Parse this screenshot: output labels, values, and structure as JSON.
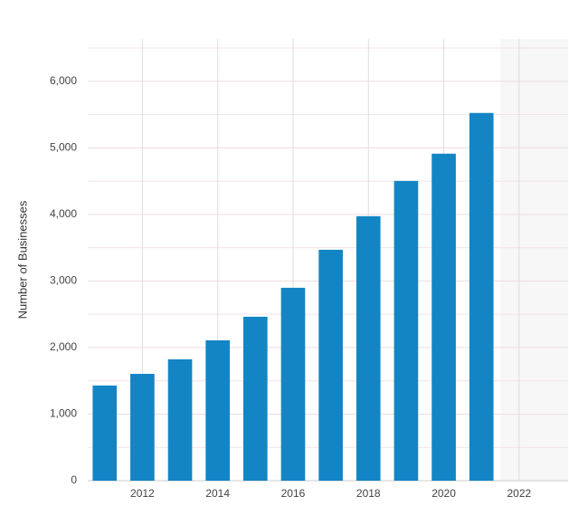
{
  "chart_data": {
    "type": "bar",
    "y_label": "Number of Businesses",
    "x": [
      2011,
      2012,
      2013,
      2014,
      2015,
      2016,
      2017,
      2018,
      2019,
      2020,
      2021
    ],
    "values": [
      1430,
      1605,
      1823,
      2109,
      2463,
      2898,
      3469,
      3973,
      4503,
      4912,
      5524
    ],
    "color": "#1485c4",
    "xlim": [
      2010.55,
      2023.3
    ],
    "xticks": [
      2012,
      2014,
      2016,
      2018,
      2020,
      2022
    ],
    "ylim": [
      0,
      6500
    ],
    "yticks": [
      0,
      {
        "value": 1000,
        "label": "1,000"
      },
      {
        "value": 2000,
        "label": "2,000"
      },
      {
        "value": 3000,
        "label": "3,000"
      },
      {
        "value": 4000,
        "label": "4,000"
      },
      {
        "value": 5000,
        "label": "5,000"
      },
      {
        "value": 6000,
        "label": "6,000"
      }
    ],
    "minor_yticks": [
      500,
      1500,
      2500,
      3500,
      4500,
      5500,
      6500
    ],
    "grid": true
  }
}
